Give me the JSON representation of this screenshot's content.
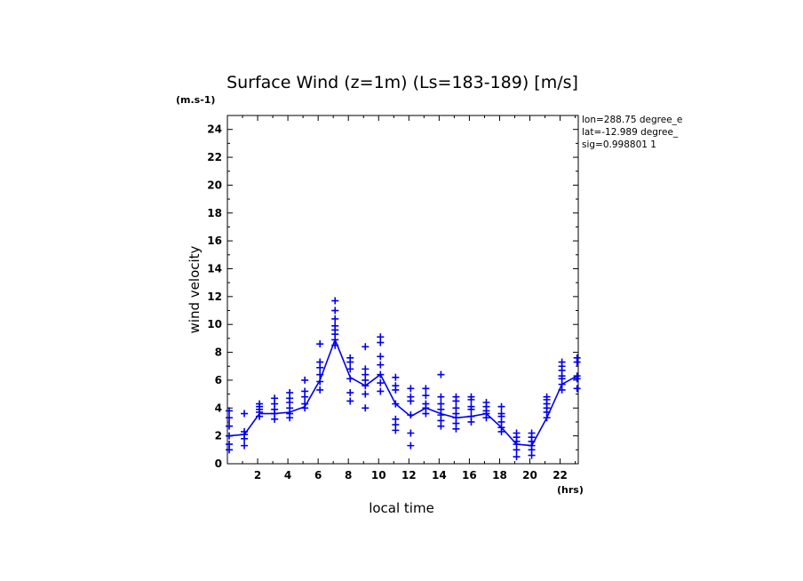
{
  "chart_data": {
    "type": "line",
    "title": "Surface Wind (z=1m) (Ls=183-189) [m/s]",
    "unit_label": "(m.s-1)",
    "xlabel": "local time",
    "x_unit_label": "(hrs)",
    "ylabel": "wind velocity",
    "xlim": [
      0,
      23.2
    ],
    "ylim": [
      0,
      25
    ],
    "x_ticks": [
      2,
      4,
      6,
      8,
      10,
      12,
      14,
      16,
      18,
      20,
      22
    ],
    "y_ticks": [
      0,
      2,
      4,
      6,
      8,
      10,
      12,
      14,
      16,
      18,
      20,
      22,
      24
    ],
    "info_lines": [
      "lon=288.75 degree_e",
      "lat=-12.989 degree_",
      "sig=0.998801 1"
    ],
    "colors": {
      "series": "#0000ee",
      "axes": "#000000"
    },
    "series": [
      {
        "kind": "mean-line",
        "x": [
          0.12,
          1.12,
          2.12,
          3.12,
          4.12,
          5.12,
          6.12,
          7.12,
          8.12,
          9.12,
          10.12,
          11.12,
          12.12,
          13.12,
          14.12,
          15.12,
          16.12,
          17.12,
          18.12,
          19.12,
          20.12,
          21.12,
          22.12,
          23.12
        ],
        "y": [
          2.0,
          2.1,
          3.6,
          3.6,
          3.7,
          4.1,
          6.0,
          8.9,
          6.2,
          5.6,
          6.4,
          4.3,
          3.4,
          4.0,
          3.6,
          3.3,
          3.4,
          3.6,
          2.6,
          1.4,
          1.3,
          3.3,
          5.7,
          6.3
        ]
      },
      {
        "kind": "scatter",
        "marker": "+",
        "points": [
          [
            0.12,
            1.0
          ],
          [
            0.12,
            1.4
          ],
          [
            0.12,
            2.0
          ],
          [
            0.12,
            2.7
          ],
          [
            0.12,
            3.3
          ],
          [
            0.12,
            3.8
          ],
          [
            1.12,
            1.3
          ],
          [
            1.12,
            1.8
          ],
          [
            1.12,
            2.1
          ],
          [
            1.12,
            2.3
          ],
          [
            1.12,
            3.6
          ],
          [
            2.12,
            3.4
          ],
          [
            2.12,
            3.7
          ],
          [
            2.12,
            3.9
          ],
          [
            2.12,
            4.1
          ],
          [
            2.12,
            4.3
          ],
          [
            3.12,
            3.2
          ],
          [
            3.12,
            3.6
          ],
          [
            3.12,
            3.9
          ],
          [
            3.12,
            4.3
          ],
          [
            3.12,
            4.7
          ],
          [
            4.12,
            3.3
          ],
          [
            4.12,
            3.6
          ],
          [
            4.12,
            4.0
          ],
          [
            4.12,
            4.4
          ],
          [
            4.12,
            4.7
          ],
          [
            4.12,
            5.1
          ],
          [
            5.12,
            4.0
          ],
          [
            5.12,
            4.3
          ],
          [
            5.12,
            4.8
          ],
          [
            5.12,
            5.2
          ],
          [
            5.12,
            6.0
          ],
          [
            6.12,
            5.3
          ],
          [
            6.12,
            5.9
          ],
          [
            6.12,
            6.4
          ],
          [
            6.12,
            6.9
          ],
          [
            6.12,
            7.3
          ],
          [
            6.12,
            8.6
          ],
          [
            7.12,
            8.5
          ],
          [
            7.12,
            8.9
          ],
          [
            7.12,
            9.3
          ],
          [
            7.12,
            9.6
          ],
          [
            7.12,
            9.9
          ],
          [
            7.12,
            10.4
          ],
          [
            7.12,
            11.0
          ],
          [
            7.12,
            11.7
          ],
          [
            8.12,
            4.5
          ],
          [
            8.12,
            5.1
          ],
          [
            8.12,
            6.1
          ],
          [
            8.12,
            6.8
          ],
          [
            8.12,
            7.3
          ],
          [
            8.12,
            7.6
          ],
          [
            9.12,
            4.0
          ],
          [
            9.12,
            5.0
          ],
          [
            9.12,
            5.6
          ],
          [
            9.12,
            6.0
          ],
          [
            9.12,
            6.4
          ],
          [
            9.12,
            6.8
          ],
          [
            9.12,
            8.4
          ],
          [
            10.12,
            5.2
          ],
          [
            10.12,
            5.8
          ],
          [
            10.12,
            6.4
          ],
          [
            10.12,
            7.1
          ],
          [
            10.12,
            7.7
          ],
          [
            10.12,
            8.7
          ],
          [
            10.12,
            9.1
          ],
          [
            11.12,
            2.4
          ],
          [
            11.12,
            2.8
          ],
          [
            11.12,
            3.2
          ],
          [
            11.12,
            4.3
          ],
          [
            11.12,
            5.3
          ],
          [
            11.12,
            5.6
          ],
          [
            11.12,
            6.2
          ],
          [
            12.12,
            1.3
          ],
          [
            12.12,
            2.2
          ],
          [
            12.12,
            3.5
          ],
          [
            12.12,
            4.5
          ],
          [
            12.12,
            4.8
          ],
          [
            12.12,
            5.4
          ],
          [
            13.12,
            3.6
          ],
          [
            13.12,
            4.0
          ],
          [
            13.12,
            4.3
          ],
          [
            13.12,
            4.9
          ],
          [
            13.12,
            5.4
          ],
          [
            14.12,
            2.7
          ],
          [
            14.12,
            3.1
          ],
          [
            14.12,
            3.5
          ],
          [
            14.12,
            3.9
          ],
          [
            14.12,
            4.3
          ],
          [
            14.12,
            4.8
          ],
          [
            14.12,
            6.4
          ],
          [
            15.12,
            2.5
          ],
          [
            15.12,
            2.9
          ],
          [
            15.12,
            3.3
          ],
          [
            15.12,
            3.6
          ],
          [
            15.12,
            4.0
          ],
          [
            15.12,
            4.5
          ],
          [
            15.12,
            4.8
          ],
          [
            16.12,
            3.0
          ],
          [
            16.12,
            3.4
          ],
          [
            16.12,
            3.9
          ],
          [
            16.12,
            4.1
          ],
          [
            16.12,
            4.6
          ],
          [
            16.12,
            4.8
          ],
          [
            17.12,
            3.3
          ],
          [
            17.12,
            3.6
          ],
          [
            17.12,
            3.8
          ],
          [
            17.12,
            4.1
          ],
          [
            17.12,
            4.4
          ],
          [
            18.12,
            2.3
          ],
          [
            18.12,
            2.6
          ],
          [
            18.12,
            3.0
          ],
          [
            18.12,
            3.4
          ],
          [
            18.12,
            3.6
          ],
          [
            18.12,
            4.1
          ],
          [
            19.12,
            0.5
          ],
          [
            19.12,
            1.0
          ],
          [
            19.12,
            1.4
          ],
          [
            19.12,
            1.6
          ],
          [
            19.12,
            1.9
          ],
          [
            19.12,
            2.2
          ],
          [
            20.12,
            0.6
          ],
          [
            20.12,
            1.0
          ],
          [
            20.12,
            1.3
          ],
          [
            20.12,
            1.6
          ],
          [
            20.12,
            1.9
          ],
          [
            20.12,
            2.2
          ],
          [
            21.12,
            3.3
          ],
          [
            21.12,
            3.7
          ],
          [
            21.12,
            4.0
          ],
          [
            21.12,
            4.3
          ],
          [
            21.12,
            4.6
          ],
          [
            21.12,
            4.8
          ],
          [
            22.12,
            5.3
          ],
          [
            22.12,
            5.7
          ],
          [
            22.12,
            6.1
          ],
          [
            22.12,
            6.3
          ],
          [
            22.12,
            6.7
          ],
          [
            22.12,
            7.0
          ],
          [
            22.12,
            7.3
          ],
          [
            23.12,
            5.4
          ],
          [
            23.12,
            6.1
          ],
          [
            23.12,
            6.3
          ],
          [
            23.12,
            7.3
          ],
          [
            23.12,
            7.6
          ]
        ]
      }
    ]
  }
}
